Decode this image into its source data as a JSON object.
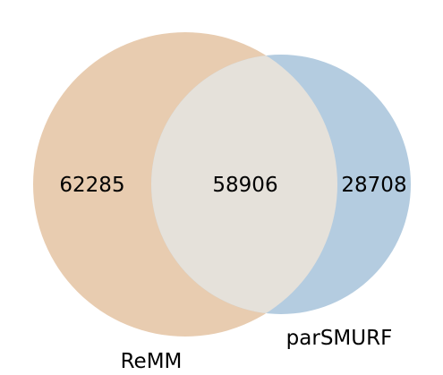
{
  "venn": {
    "sets": [
      {
        "name": "ReMM",
        "color": "#e8ccb0",
        "only_count": "62285"
      },
      {
        "name": "parSMURF",
        "color": "#b4cce0",
        "only_count": "28708"
      }
    ],
    "intersection": {
      "count": "58906",
      "color": "#e5e1da"
    }
  }
}
